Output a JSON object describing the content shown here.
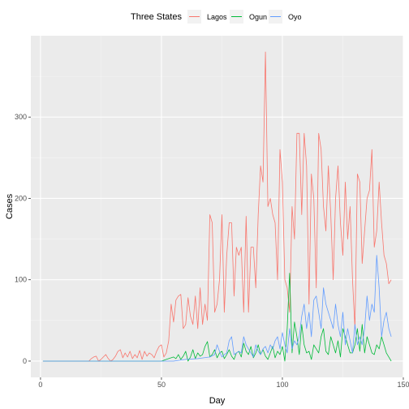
{
  "chart_data": {
    "type": "line",
    "xlabel": "Day",
    "ylabel": "Cases",
    "xlim": [
      -4,
      150
    ],
    "ylim": [
      -20,
      400
    ],
    "x_ticks": [
      0,
      50,
      100,
      150
    ],
    "y_ticks": [
      0,
      100,
      200,
      300
    ],
    "x_tick_labels": [
      "0",
      "50",
      "100",
      "150"
    ],
    "y_tick_labels": [
      "0",
      "100",
      "200",
      "300"
    ],
    "grid": true,
    "legend_position": "top",
    "legend_title": "Three States",
    "series": [
      {
        "name": "Lagos",
        "color": "#F8766D",
        "x": [
          1,
          5,
          10,
          15,
          18,
          20,
          21,
          22,
          23,
          24,
          25,
          26,
          27,
          28,
          29,
          30,
          31,
          32,
          33,
          34,
          35,
          36,
          37,
          38,
          39,
          40,
          41,
          42,
          43,
          44,
          45,
          46,
          47,
          48,
          49,
          50,
          51,
          52,
          53,
          54,
          55,
          56,
          57,
          58,
          59,
          60,
          61,
          62,
          63,
          64,
          65,
          66,
          67,
          68,
          69,
          70,
          71,
          72,
          73,
          74,
          75,
          76,
          77,
          78,
          79,
          80,
          81,
          82,
          83,
          84,
          85,
          86,
          87,
          88,
          89,
          90,
          91,
          92,
          93,
          94,
          95,
          96,
          97,
          98,
          99,
          100,
          101,
          102,
          103,
          104,
          105,
          106,
          107,
          108,
          109,
          110,
          111,
          112,
          113,
          114,
          115,
          116,
          117,
          118,
          119,
          120,
          121,
          122,
          123,
          124,
          125,
          126,
          127,
          128,
          129,
          130,
          131,
          132,
          133,
          134,
          135,
          136,
          137,
          138,
          139,
          140,
          141,
          142,
          143,
          144,
          145
        ],
        "y": [
          0,
          0,
          0,
          0,
          0,
          0,
          3,
          5,
          6,
          0,
          2,
          5,
          8,
          3,
          0,
          2,
          6,
          12,
          14,
          4,
          10,
          5,
          12,
          3,
          8,
          4,
          13,
          2,
          12,
          6,
          10,
          8,
          4,
          12,
          18,
          20,
          5,
          10,
          25,
          70,
          48,
          75,
          80,
          82,
          40,
          45,
          78,
          55,
          45,
          80,
          40,
          90,
          45,
          70,
          50,
          180,
          170,
          60,
          70,
          100,
          180,
          60,
          130,
          170,
          170,
          80,
          140,
          130,
          140,
          60,
          178,
          60,
          140,
          140,
          90,
          180,
          240,
          220,
          380,
          190,
          200,
          180,
          170,
          100,
          260,
          220,
          100,
          90,
          60,
          190,
          150,
          280,
          280,
          180,
          280,
          240,
          70,
          230,
          200,
          90,
          280,
          260,
          190,
          160,
          240,
          180,
          100,
          200,
          240,
          170,
          130,
          220,
          150,
          190,
          100,
          40,
          230,
          220,
          120,
          160,
          200,
          210,
          260,
          140,
          160,
          220,
          170,
          130,
          120,
          95,
          100
        ]
      },
      {
        "name": "Ogun",
        "color": "#00BA38",
        "x": [
          1,
          10,
          20,
          25,
          30,
          35,
          40,
          45,
          50,
          52,
          55,
          56,
          57,
          58,
          59,
          60,
          61,
          62,
          63,
          64,
          65,
          66,
          67,
          68,
          69,
          70,
          71,
          72,
          73,
          74,
          75,
          76,
          77,
          78,
          79,
          80,
          81,
          82,
          83,
          84,
          85,
          86,
          87,
          88,
          89,
          90,
          91,
          92,
          93,
          94,
          95,
          96,
          97,
          98,
          99,
          100,
          101,
          102,
          103,
          104,
          105,
          106,
          107,
          108,
          109,
          110,
          111,
          112,
          113,
          114,
          115,
          116,
          117,
          118,
          119,
          120,
          121,
          122,
          123,
          124,
          125,
          126,
          127,
          128,
          129,
          130,
          131,
          132,
          133,
          134,
          135,
          136,
          137,
          138,
          139,
          140,
          141,
          142,
          143,
          144,
          145
        ],
        "y": [
          0,
          0,
          0,
          0,
          0,
          0,
          0,
          0,
          0,
          2,
          5,
          3,
          8,
          2,
          6,
          12,
          0,
          5,
          14,
          3,
          10,
          6,
          8,
          18,
          24,
          5,
          8,
          14,
          4,
          10,
          12,
          3,
          8,
          14,
          6,
          2,
          10,
          12,
          5,
          22,
          12,
          8,
          18,
          4,
          10,
          20,
          8,
          14,
          6,
          2,
          10,
          18,
          4,
          12,
          8,
          18,
          0,
          40,
          108,
          10,
          48,
          30,
          8,
          45,
          20,
          10,
          12,
          2,
          20,
          15,
          10,
          30,
          40,
          12,
          8,
          30,
          20,
          10,
          25,
          5,
          40,
          30,
          20,
          10,
          10,
          20,
          40,
          12,
          45,
          10,
          30,
          20,
          10,
          8,
          20,
          15,
          30,
          20,
          10,
          5,
          0
        ]
      },
      {
        "name": "Oyo",
        "color": "#619CFF",
        "x": [
          1,
          10,
          20,
          30,
          40,
          50,
          55,
          60,
          65,
          70,
          72,
          73,
          74,
          75,
          76,
          77,
          78,
          79,
          80,
          81,
          82,
          83,
          84,
          85,
          86,
          87,
          88,
          89,
          90,
          91,
          92,
          93,
          94,
          95,
          96,
          97,
          98,
          99,
          100,
          101,
          102,
          103,
          104,
          105,
          106,
          107,
          108,
          109,
          110,
          111,
          112,
          113,
          114,
          115,
          116,
          117,
          118,
          119,
          120,
          121,
          122,
          123,
          124,
          125,
          126,
          127,
          128,
          129,
          130,
          131,
          132,
          133,
          134,
          135,
          136,
          137,
          138,
          139,
          140,
          141,
          142,
          143,
          144,
          145
        ],
        "y": [
          0,
          0,
          0,
          0,
          0,
          0,
          0,
          2,
          3,
          5,
          8,
          20,
          12,
          5,
          8,
          10,
          25,
          30,
          8,
          10,
          12,
          10,
          30,
          20,
          15,
          10,
          5,
          20,
          12,
          8,
          15,
          18,
          10,
          20,
          15,
          25,
          30,
          15,
          35,
          20,
          10,
          40,
          15,
          25,
          20,
          30,
          55,
          70,
          40,
          60,
          30,
          75,
          80,
          60,
          40,
          90,
          70,
          60,
          50,
          40,
          70,
          45,
          30,
          60,
          20,
          40,
          25,
          10,
          45,
          20,
          30,
          20,
          40,
          80,
          50,
          70,
          60,
          130,
          90,
          30,
          50,
          60,
          40,
          30
        ]
      }
    ]
  }
}
